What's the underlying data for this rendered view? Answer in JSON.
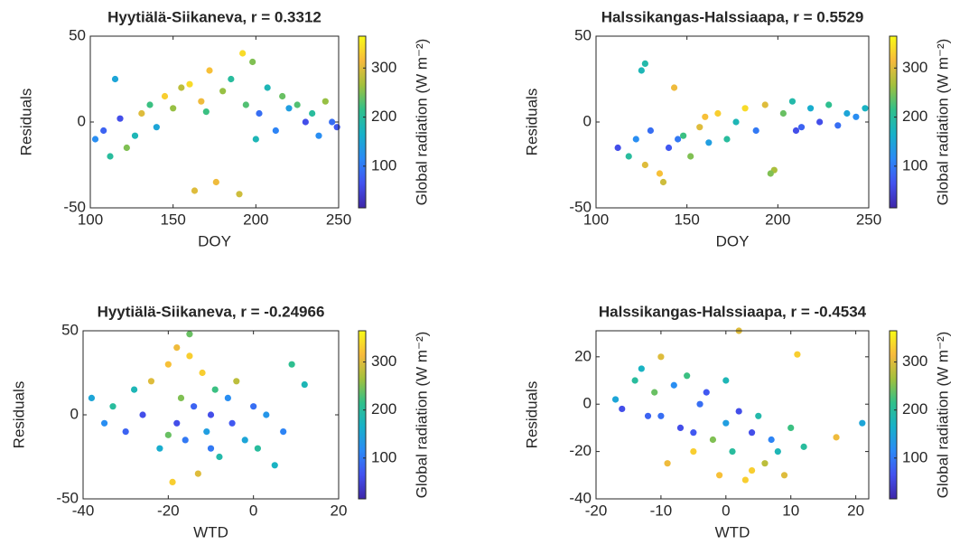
{
  "chart_data": [
    {
      "type": "scatter",
      "title": "Hyytiälä-Siikaneva, r = 0.3312",
      "xlabel": "DOY",
      "ylabel": "Residuals",
      "x": [
        103,
        108,
        112,
        118,
        122,
        127,
        131,
        136,
        140,
        145,
        150,
        155,
        160,
        163,
        167,
        172,
        176,
        180,
        185,
        190,
        194,
        198,
        202,
        207,
        212,
        216,
        220,
        225,
        230,
        234,
        238,
        242,
        246,
        249,
        115,
        170,
        192,
        200
      ],
      "y": [
        -10,
        -5,
        -20,
        2,
        -15,
        -8,
        5,
        10,
        -3,
        15,
        8,
        20,
        22,
        -40,
        12,
        30,
        -35,
        18,
        25,
        -42,
        10,
        35,
        5,
        20,
        -5,
        15,
        8,
        10,
        0,
        5,
        -8,
        12,
        0,
        -3,
        25,
        6,
        40,
        -10
      ],
      "c": [
        120,
        80,
        200,
        60,
        250,
        180,
        300,
        220,
        150,
        330,
        260,
        280,
        340,
        300,
        310,
        320,
        310,
        260,
        200,
        290,
        230,
        250,
        90,
        180,
        110,
        240,
        140,
        230,
        60,
        200,
        120,
        260,
        90,
        70,
        150,
        220,
        340,
        180
      ],
      "xlim": [
        100,
        250
      ],
      "ylim": [
        -50,
        50
      ],
      "xticks": [
        100,
        150,
        200,
        250
      ],
      "yticks": [
        -50,
        0,
        50
      ],
      "colorbar_label": "Global radiation (W m⁻²)",
      "clim": [
        15,
        365
      ],
      "cticks": [
        100,
        200,
        300
      ],
      "colormap": [
        "#3e26a8",
        "#4352f0",
        "#2b8af6",
        "#17b1c9",
        "#30c08a",
        "#a2c03c",
        "#f7ba3c",
        "#f9fb15"
      ]
    },
    {
      "type": "scatter",
      "title": "Halssikangas-Halssiaapa, r = 0.5529",
      "xlabel": "DOY",
      "ylabel": "Residuals",
      "x": [
        112,
        118,
        122,
        125,
        127,
        130,
        135,
        140,
        143,
        148,
        152,
        157,
        162,
        167,
        172,
        177,
        182,
        188,
        193,
        198,
        203,
        208,
        213,
        218,
        223,
        228,
        233,
        238,
        243,
        248,
        127,
        137,
        196,
        145,
        160,
        210
      ],
      "y": [
        -15,
        -20,
        -10,
        30,
        -25,
        -5,
        -30,
        -15,
        20,
        -8,
        -20,
        -3,
        -12,
        5,
        -10,
        0,
        8,
        -5,
        10,
        -28,
        5,
        12,
        -3,
        8,
        0,
        10,
        -2,
        5,
        3,
        8,
        34,
        -35,
        -30,
        -10,
        3,
        -5
      ],
      "c": [
        60,
        200,
        120,
        180,
        300,
        90,
        320,
        70,
        310,
        220,
        250,
        300,
        140,
        330,
        200,
        180,
        340,
        100,
        300,
        270,
        240,
        190,
        80,
        160,
        60,
        210,
        90,
        150,
        120,
        170,
        190,
        290,
        250,
        100,
        320,
        60
      ],
      "xlim": [
        100,
        250
      ],
      "ylim": [
        -50,
        50
      ],
      "xticks": [
        100,
        150,
        200,
        250
      ],
      "yticks": [
        -50,
        0,
        50
      ],
      "colorbar_label": "Global radiation (W m⁻²)",
      "clim": [
        15,
        365
      ],
      "cticks": [
        100,
        200,
        300
      ],
      "colormap": [
        "#3e26a8",
        "#4352f0",
        "#2b8af6",
        "#17b1c9",
        "#30c08a",
        "#a2c03c",
        "#f7ba3c",
        "#f9fb15"
      ]
    },
    {
      "type": "scatter",
      "title": "Hyytiälä-Siikaneva, r = -0.24966",
      "xlabel": "WTD",
      "ylabel": "Residuals",
      "x": [
        -38,
        -35,
        -33,
        -30,
        -28,
        -26,
        -24,
        -22,
        -20,
        -19,
        -18,
        -17,
        -16,
        -15,
        -14,
        -13,
        -12,
        -11,
        -10,
        -9,
        -8,
        -6,
        -5,
        -4,
        -2,
        0,
        1,
        3,
        5,
        7,
        9,
        12,
        -15,
        -18,
        -10,
        -20
      ],
      "y": [
        10,
        -5,
        5,
        -10,
        15,
        0,
        20,
        -20,
        30,
        -40,
        40,
        10,
        -15,
        48,
        5,
        -35,
        25,
        -10,
        0,
        15,
        -25,
        10,
        -5,
        20,
        -15,
        5,
        -20,
        0,
        -30,
        -10,
        30,
        18,
        35,
        -5,
        -20,
        -12
      ],
      "c": [
        150,
        120,
        200,
        80,
        180,
        60,
        300,
        160,
        320,
        330,
        310,
        250,
        100,
        240,
        80,
        300,
        330,
        140,
        60,
        220,
        190,
        120,
        70,
        280,
        150,
        90,
        200,
        130,
        170,
        110,
        210,
        180,
        330,
        60,
        100,
        240
      ],
      "xlim": [
        -40,
        20
      ],
      "ylim": [
        -50,
        50
      ],
      "xticks": [
        -40,
        -20,
        0,
        20
      ],
      "yticks": [
        -50,
        0,
        50
      ],
      "colorbar_label": "Global radiation (W m⁻²)",
      "clim": [
        15,
        365
      ],
      "cticks": [
        100,
        200,
        300
      ],
      "colormap": [
        "#3e26a8",
        "#4352f0",
        "#2b8af6",
        "#17b1c9",
        "#30c08a",
        "#a2c03c",
        "#f7ba3c",
        "#f9fb15"
      ]
    },
    {
      "type": "scatter",
      "title": "Halssikangas-Halssiaapa, r = -0.4534",
      "xlabel": "WTD",
      "ylabel": "Residuals",
      "x": [
        -17,
        -16,
        -14,
        -13,
        -12,
        -11,
        -10,
        -9,
        -8,
        -7,
        -6,
        -5,
        -4,
        -3,
        -2,
        -1,
        0,
        1,
        2,
        3,
        4,
        5,
        6,
        7,
        8,
        9,
        10,
        11,
        12,
        17,
        21,
        -10,
        -5,
        2,
        4,
        0
      ],
      "y": [
        2,
        -2,
        10,
        15,
        -5,
        5,
        20,
        -25,
        8,
        -10,
        12,
        -20,
        0,
        5,
        -15,
        -30,
        -8,
        -20,
        31,
        -32,
        -12,
        -5,
        -25,
        -15,
        -20,
        -30,
        -10,
        21,
        -18,
        -14,
        -8,
        -5,
        -12,
        -3,
        -28,
        10
      ],
      "c": [
        150,
        60,
        200,
        170,
        80,
        240,
        300,
        310,
        120,
        60,
        220,
        330,
        90,
        70,
        250,
        320,
        140,
        200,
        300,
        330,
        60,
        190,
        280,
        110,
        180,
        300,
        220,
        330,
        200,
        310,
        150,
        90,
        70,
        60,
        330,
        180
      ],
      "xlim": [
        -20,
        22
      ],
      "ylim": [
        -40,
        31
      ],
      "xticks": [
        -20,
        -10,
        0,
        10,
        20
      ],
      "yticks": [
        -40,
        -20,
        0,
        20
      ],
      "colorbar_label": "Global radiation (W m⁻²)",
      "clim": [
        15,
        365
      ],
      "cticks": [
        100,
        200,
        300
      ],
      "colormap": [
        "#3e26a8",
        "#4352f0",
        "#2b8af6",
        "#17b1c9",
        "#30c08a",
        "#a2c03c",
        "#f7ba3c",
        "#f9fb15"
      ]
    }
  ]
}
